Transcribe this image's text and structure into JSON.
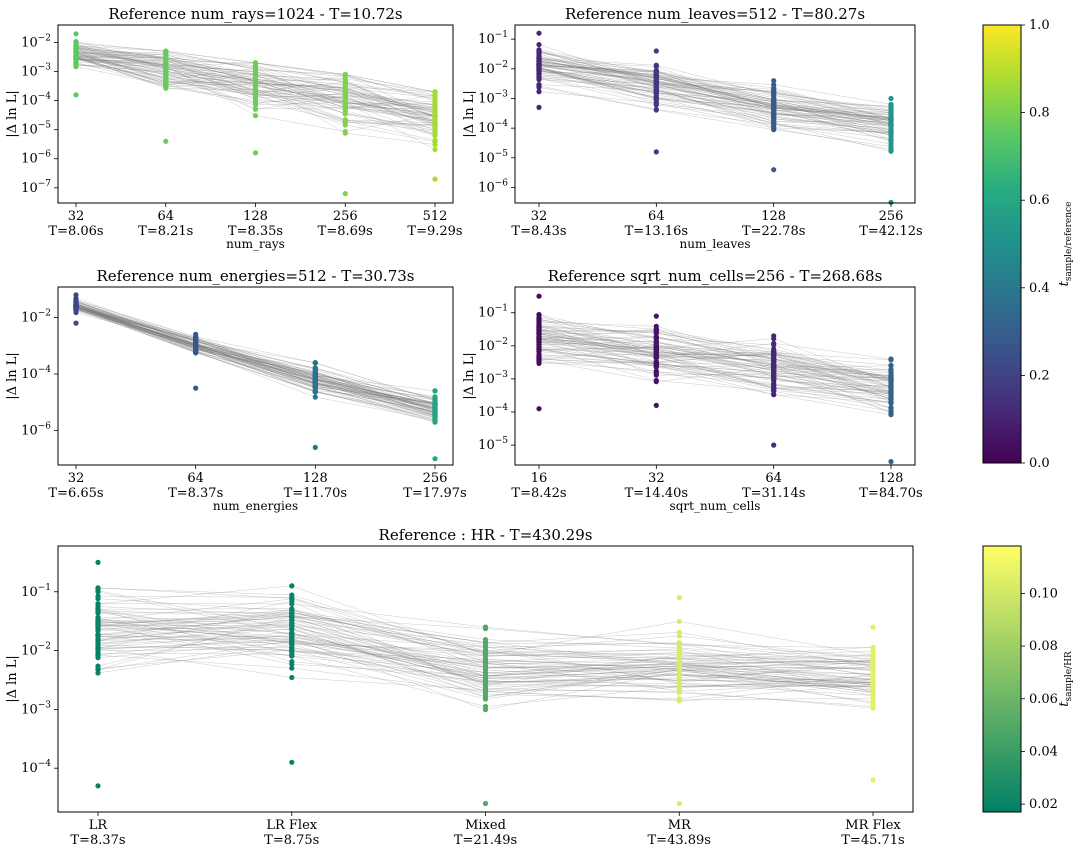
{
  "figure": {
    "cbar_top": {
      "label_main": "t",
      "label_sub": "sample/reference",
      "ticks": [
        "0.0",
        "0.2",
        "0.4",
        "0.6",
        "0.8",
        "1.0"
      ],
      "min": 0.0,
      "max": 1.0,
      "colormap": "viridis"
    },
    "cbar_bottom": {
      "label_main": "t",
      "label_sub": "sample/HR",
      "ticks": [
        "0.02",
        "0.04",
        "0.06",
        "0.08",
        "0.10"
      ],
      "min": 0.017,
      "max": 0.118,
      "colormap": "summer"
    }
  },
  "chart_data": [
    {
      "type": "scatter",
      "title": "Reference num_rays=1024 - T=10.72s",
      "xlabel": "num_rays",
      "ylabel": "|Δ ln L|",
      "yscale": "log",
      "ylim": [
        3e-08,
        0.04
      ],
      "yticks": [
        [
          "1e-2",
          "10"
        ],
        [
          "1e-3",
          "10"
        ],
        [
          "1e-4",
          "10"
        ],
        [
          "1e-5",
          "10"
        ],
        [
          "1e-6",
          "10"
        ],
        [
          "1e-7",
          "10"
        ]
      ],
      "ytick_values": [
        -2,
        -3,
        -4,
        -5,
        -6,
        -7
      ],
      "ytick_exponents": [
        "−2",
        "−3",
        "−4",
        "−5",
        "−6",
        "−7"
      ],
      "categories": [
        "32",
        "64",
        "128",
        "256",
        "512"
      ],
      "times": [
        "T=8.06s",
        "T=8.21s",
        "T=8.35s",
        "T=8.69s",
        "T=9.29s"
      ],
      "color_values": [
        0.75,
        0.77,
        0.78,
        0.81,
        0.87
      ],
      "center_log": [
        -2.4,
        -2.9,
        -3.4,
        -3.9,
        -4.5
      ],
      "spread": [
        0.9,
        1.4,
        1.6,
        2.0,
        1.8
      ],
      "ymin_log": [
        -3.8,
        -5.4,
        -5.8,
        -7.2,
        -6.7
      ],
      "ymax_log": [
        -1.7,
        -2.3,
        -2.7,
        -3.1,
        -3.7
      ]
    },
    {
      "type": "scatter",
      "title": "Reference num_leaves=512 - T=80.27s",
      "xlabel": "num_leaves",
      "ylabel": "|Δ ln L|",
      "yscale": "log",
      "ylim": [
        3e-07,
        0.3
      ],
      "ytick_values": [
        -1,
        -2,
        -3,
        -4,
        -5,
        -6
      ],
      "ytick_exponents": [
        "−1",
        "−2",
        "−3",
        "−4",
        "−5",
        "−6"
      ],
      "categories": [
        "32",
        "64",
        "128",
        "256"
      ],
      "times": [
        "T=8.43s",
        "T=13.16s",
        "T=22.78s",
        "T=42.12s"
      ],
      "color_values": [
        0.105,
        0.164,
        0.284,
        0.525
      ],
      "center_log": [
        -1.9,
        -2.5,
        -3.3,
        -3.9
      ],
      "spread": [
        1.1,
        1.2,
        1.1,
        1.3
      ],
      "ymin_log": [
        -3.3,
        -4.8,
        -5.4,
        -6.5
      ],
      "ymax_log": [
        -0.8,
        -1.4,
        -2.4,
        -3.0
      ]
    },
    {
      "type": "scatter",
      "title": "Reference num_energies=512 - T=30.73s",
      "xlabel": "num_energies",
      "ylabel": "|Δ ln L|",
      "yscale": "log",
      "ylim": [
        6e-08,
        0.12
      ],
      "ytick_values": [
        -2,
        -4,
        -6
      ],
      "ytick_exponents": [
        "−2",
        "−4",
        "−6"
      ],
      "categories": [
        "32",
        "64",
        "128",
        "256"
      ],
      "times": [
        "T=6.65s",
        "T=8.37s",
        "T=11.70s",
        "T=17.97s"
      ],
      "color_values": [
        0.216,
        0.272,
        0.381,
        0.585
      ],
      "center_log": [
        -1.6,
        -3.0,
        -4.2,
        -5.2
      ],
      "spread": [
        0.4,
        0.6,
        0.9,
        0.9
      ],
      "ymin_log": [
        -2.2,
        -4.5,
        -6.6,
        -7.0
      ],
      "ymax_log": [
        -1.2,
        -2.6,
        -3.6,
        -4.6
      ]
    },
    {
      "type": "scatter",
      "title": "Reference sqrt_num_cells=256 - T=268.68s",
      "xlabel": "sqrt_num_cells",
      "ylabel": "|Δ ln L|",
      "yscale": "log",
      "ylim": [
        2.5e-06,
        0.6
      ],
      "ytick_values": [
        -1,
        -2,
        -3,
        -4,
        -5
      ],
      "ytick_exponents": [
        "−1",
        "−2",
        "−3",
        "−4",
        "−5"
      ],
      "categories": [
        "16",
        "32",
        "64",
        "128"
      ],
      "times": [
        "T=8.42s",
        "T=14.40s",
        "T=31.14s",
        "T=84.70s"
      ],
      "color_values": [
        0.031,
        0.054,
        0.116,
        0.315
      ],
      "center_log": [
        -1.8,
        -2.2,
        -2.7,
        -3.3
      ],
      "spread": [
        1.4,
        1.3,
        1.4,
        1.4
      ],
      "ymin_log": [
        -3.9,
        -3.8,
        -5.0,
        -5.5
      ],
      "ymax_log": [
        -0.5,
        -1.1,
        -1.7,
        -2.4
      ]
    },
    {
      "type": "scatter",
      "title": "Reference : HR - T=430.29s",
      "xlabel": "",
      "ylabel": "|Δ ln L|",
      "yscale": "log",
      "ylim": [
        1.8e-05,
        0.6
      ],
      "ytick_values": [
        -1,
        -2,
        -3,
        -4
      ],
      "ytick_exponents": [
        "−1",
        "−2",
        "−3",
        "−4"
      ],
      "categories": [
        "LR",
        "LR Flex",
        "Mixed",
        "MR",
        "MR Flex"
      ],
      "times": [
        "T=8.37s",
        "T=8.75s",
        "T=21.49s",
        "T=43.89s",
        "T=45.71s"
      ],
      "color_values": [
        0.0195,
        0.0203,
        0.05,
        0.102,
        0.106
      ],
      "center_log": [
        -1.6,
        -1.6,
        -2.3,
        -2.3,
        -2.4
      ],
      "spread": [
        1.3,
        1.2,
        1.2,
        1.0,
        1.0
      ],
      "ymin_log": [
        -4.3,
        -3.9,
        -4.6,
        -4.6,
        -4.2
      ],
      "ymax_log": [
        -0.5,
        -0.9,
        -1.6,
        -1.1,
        -1.6
      ]
    }
  ]
}
